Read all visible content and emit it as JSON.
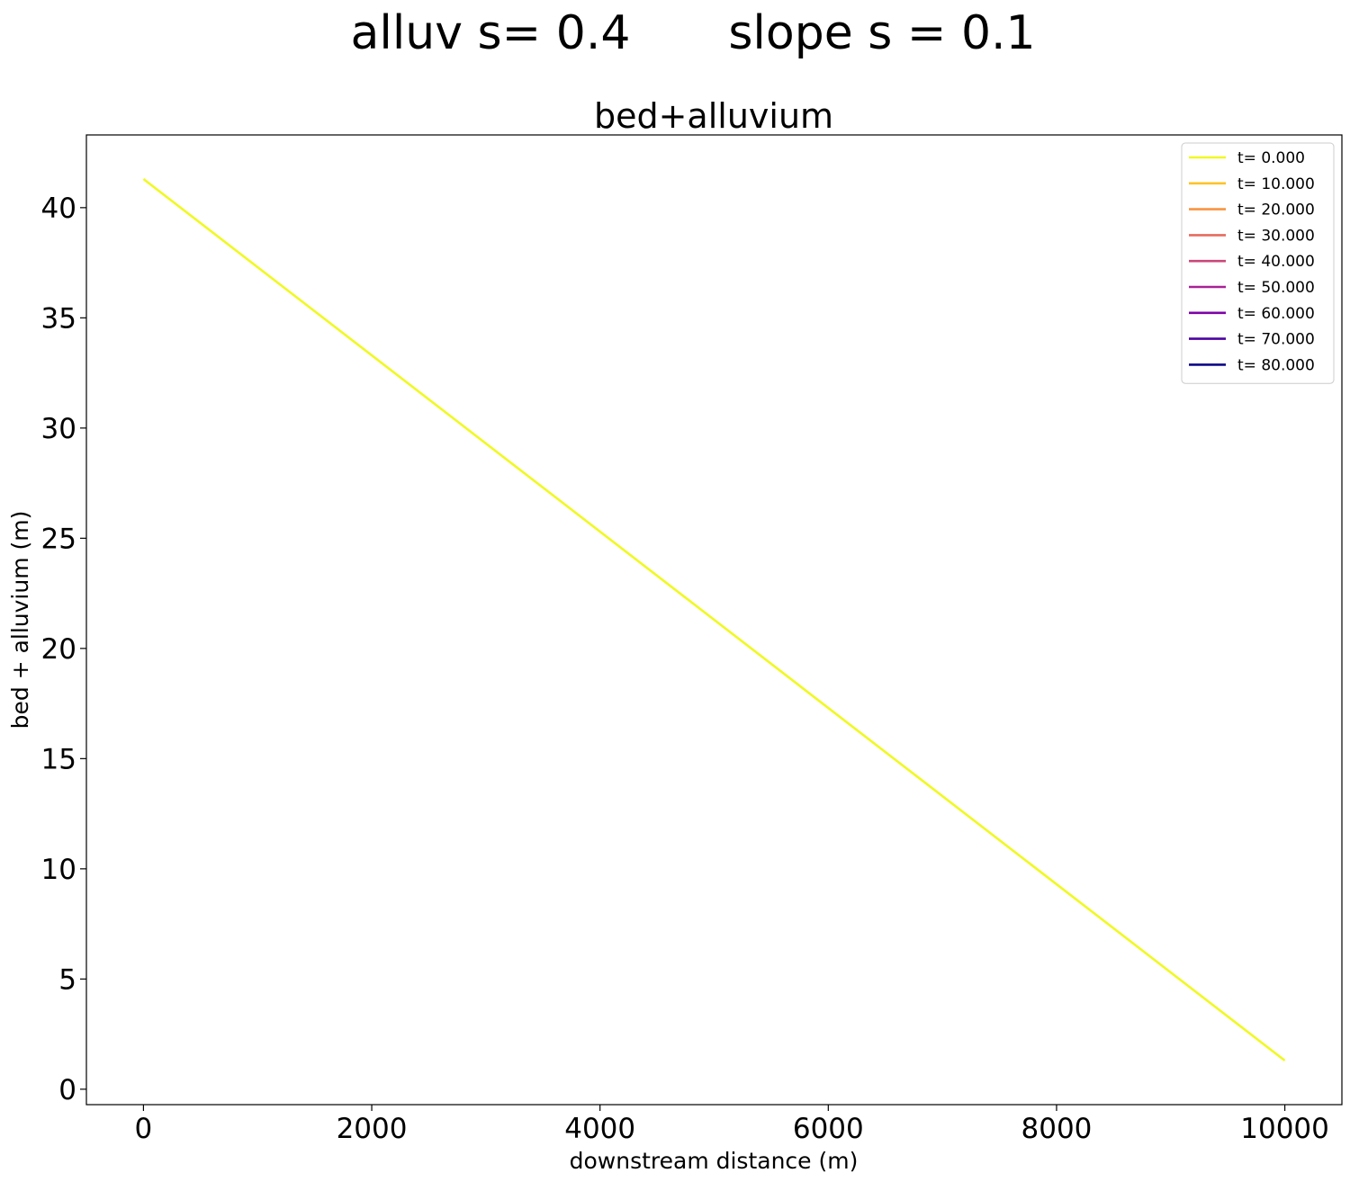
{
  "figure": {
    "suptitle_left": "alluv s= 0.4",
    "suptitle_right": "slope s = 0.1"
  },
  "chart_data": {
    "type": "line",
    "title": "bed+alluvium",
    "xlabel": "downstream distance (m)",
    "ylabel": "bed + alluvium (m)",
    "xlim": [
      -500,
      10500
    ],
    "ylim": [
      -0.7,
      43.3
    ],
    "xticks": [
      0,
      2000,
      4000,
      6000,
      8000,
      10000
    ],
    "yticks": [
      0,
      5,
      10,
      15,
      20,
      25,
      30,
      35,
      40
    ],
    "grid": false,
    "legend_position": "top-right",
    "series": [
      {
        "name": "t= 0.000",
        "color": "#f0f921",
        "x": [
          0,
          10000
        ],
        "y": [
          41.3,
          1.3
        ]
      },
      {
        "name": "t= 10.000",
        "color": "#fdc328",
        "x": [],
        "y": []
      },
      {
        "name": "t= 20.000",
        "color": "#f89441",
        "x": [],
        "y": []
      },
      {
        "name": "t= 30.000",
        "color": "#e56b5d",
        "x": [],
        "y": []
      },
      {
        "name": "t= 40.000",
        "color": "#cb4778",
        "x": [],
        "y": []
      },
      {
        "name": "t= 50.000",
        "color": "#a82296",
        "x": [],
        "y": []
      },
      {
        "name": "t= 60.000",
        "color": "#7e03a8",
        "x": [],
        "y": []
      },
      {
        "name": "t= 70.000",
        "color": "#4c02a1",
        "x": [],
        "y": []
      },
      {
        "name": "t= 80.000",
        "color": "#0d0887",
        "x": [],
        "y": []
      }
    ]
  }
}
